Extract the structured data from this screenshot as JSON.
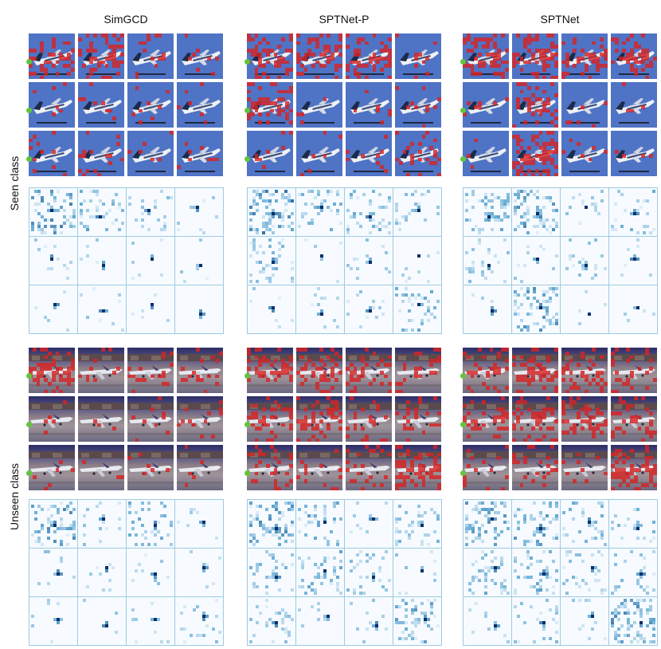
{
  "figure": {
    "columns": [
      {
        "id": "simgcd",
        "title": "SimGCD"
      },
      {
        "id": "sptnet-p",
        "title": "SPTNet-P"
      },
      {
        "id": "sptnet",
        "title": "SPTNet"
      }
    ],
    "rows": [
      {
        "id": "seen",
        "label": "Seen class",
        "scene": "plane in blue sky"
      },
      {
        "id": "unseen",
        "label": "Unseen class",
        "scene": "planes on airport tarmac"
      }
    ],
    "grid": {
      "rows_per_block": 3,
      "cols_per_block": 4
    },
    "colors": {
      "attention_overlay": "#d72323",
      "anchor_dot": "#63c53a",
      "heatmap_low": "#f7fbff",
      "heatmap_mid": "#6baed6",
      "heatmap_high": "#08306b",
      "cell_border": "#9ecae1"
    },
    "overlay_density": {
      "seen": {
        "simgcd": [
          [
            0.3,
            0.5,
            0.08,
            0.05
          ],
          [
            0.05,
            0.05,
            0.05,
            0.05
          ],
          [
            0.05,
            0.12,
            0.05,
            0.1
          ]
        ],
        "sptnet-p": [
          [
            0.4,
            0.35,
            0.35,
            0.08
          ],
          [
            0.45,
            0.05,
            0.05,
            0.05
          ],
          [
            0.05,
            0.05,
            0.05,
            0.25
          ]
        ],
        "sptnet": [
          [
            0.55,
            0.45,
            0.4,
            0.4
          ],
          [
            0.05,
            0.3,
            0.05,
            0.05
          ],
          [
            0.05,
            0.55,
            0.05,
            0.05
          ]
        ]
      },
      "unseen": {
        "simgcd": [
          [
            0.45,
            0.15,
            0.25,
            0.1
          ],
          [
            0.05,
            0.08,
            0.08,
            0.06
          ],
          [
            0.05,
            0.05,
            0.05,
            0.05
          ]
        ],
        "sptnet-p": [
          [
            0.4,
            0.3,
            0.25,
            0.2
          ],
          [
            0.3,
            0.4,
            0.25,
            0.2
          ],
          [
            0.25,
            0.15,
            0.2,
            0.55
          ]
        ],
        "sptnet": [
          [
            0.35,
            0.45,
            0.25,
            0.3
          ],
          [
            0.3,
            0.45,
            0.4,
            0.3
          ],
          [
            0.1,
            0.2,
            0.1,
            0.5
          ]
        ]
      }
    },
    "heatmap_spread": {
      "seen": {
        "simgcd": [
          [
            0.6,
            0.45,
            0.15,
            0.05
          ],
          [
            0.05,
            0.05,
            0.05,
            0.05
          ],
          [
            0.05,
            0.08,
            0.05,
            0.0
          ]
        ],
        "sptnet-p": [
          [
            0.7,
            0.3,
            0.35,
            0.2
          ],
          [
            0.3,
            0.05,
            0.12,
            0.05
          ],
          [
            0.05,
            0.05,
            0.08,
            0.35
          ]
        ],
        "sptnet": [
          [
            0.4,
            0.55,
            0.15,
            0.3
          ],
          [
            0.15,
            0.08,
            0.15,
            0.08
          ],
          [
            0.05,
            0.5,
            0.05,
            0.05
          ]
        ]
      },
      "unseen": {
        "simgcd": [
          [
            0.55,
            0.15,
            0.35,
            0.08
          ],
          [
            0.1,
            0.1,
            0.1,
            0.05
          ],
          [
            0.08,
            0.05,
            0.05,
            0.15
          ]
        ],
        "sptnet-p": [
          [
            0.55,
            0.4,
            0.05,
            0.25
          ],
          [
            0.25,
            0.35,
            0.2,
            0.1
          ],
          [
            0.2,
            0.08,
            0.08,
            0.45
          ]
        ],
        "sptnet": [
          [
            0.5,
            0.45,
            0.3,
            0.25
          ],
          [
            0.35,
            0.4,
            0.25,
            0.2
          ],
          [
            0.05,
            0.2,
            0.1,
            0.6
          ]
        ]
      }
    }
  }
}
